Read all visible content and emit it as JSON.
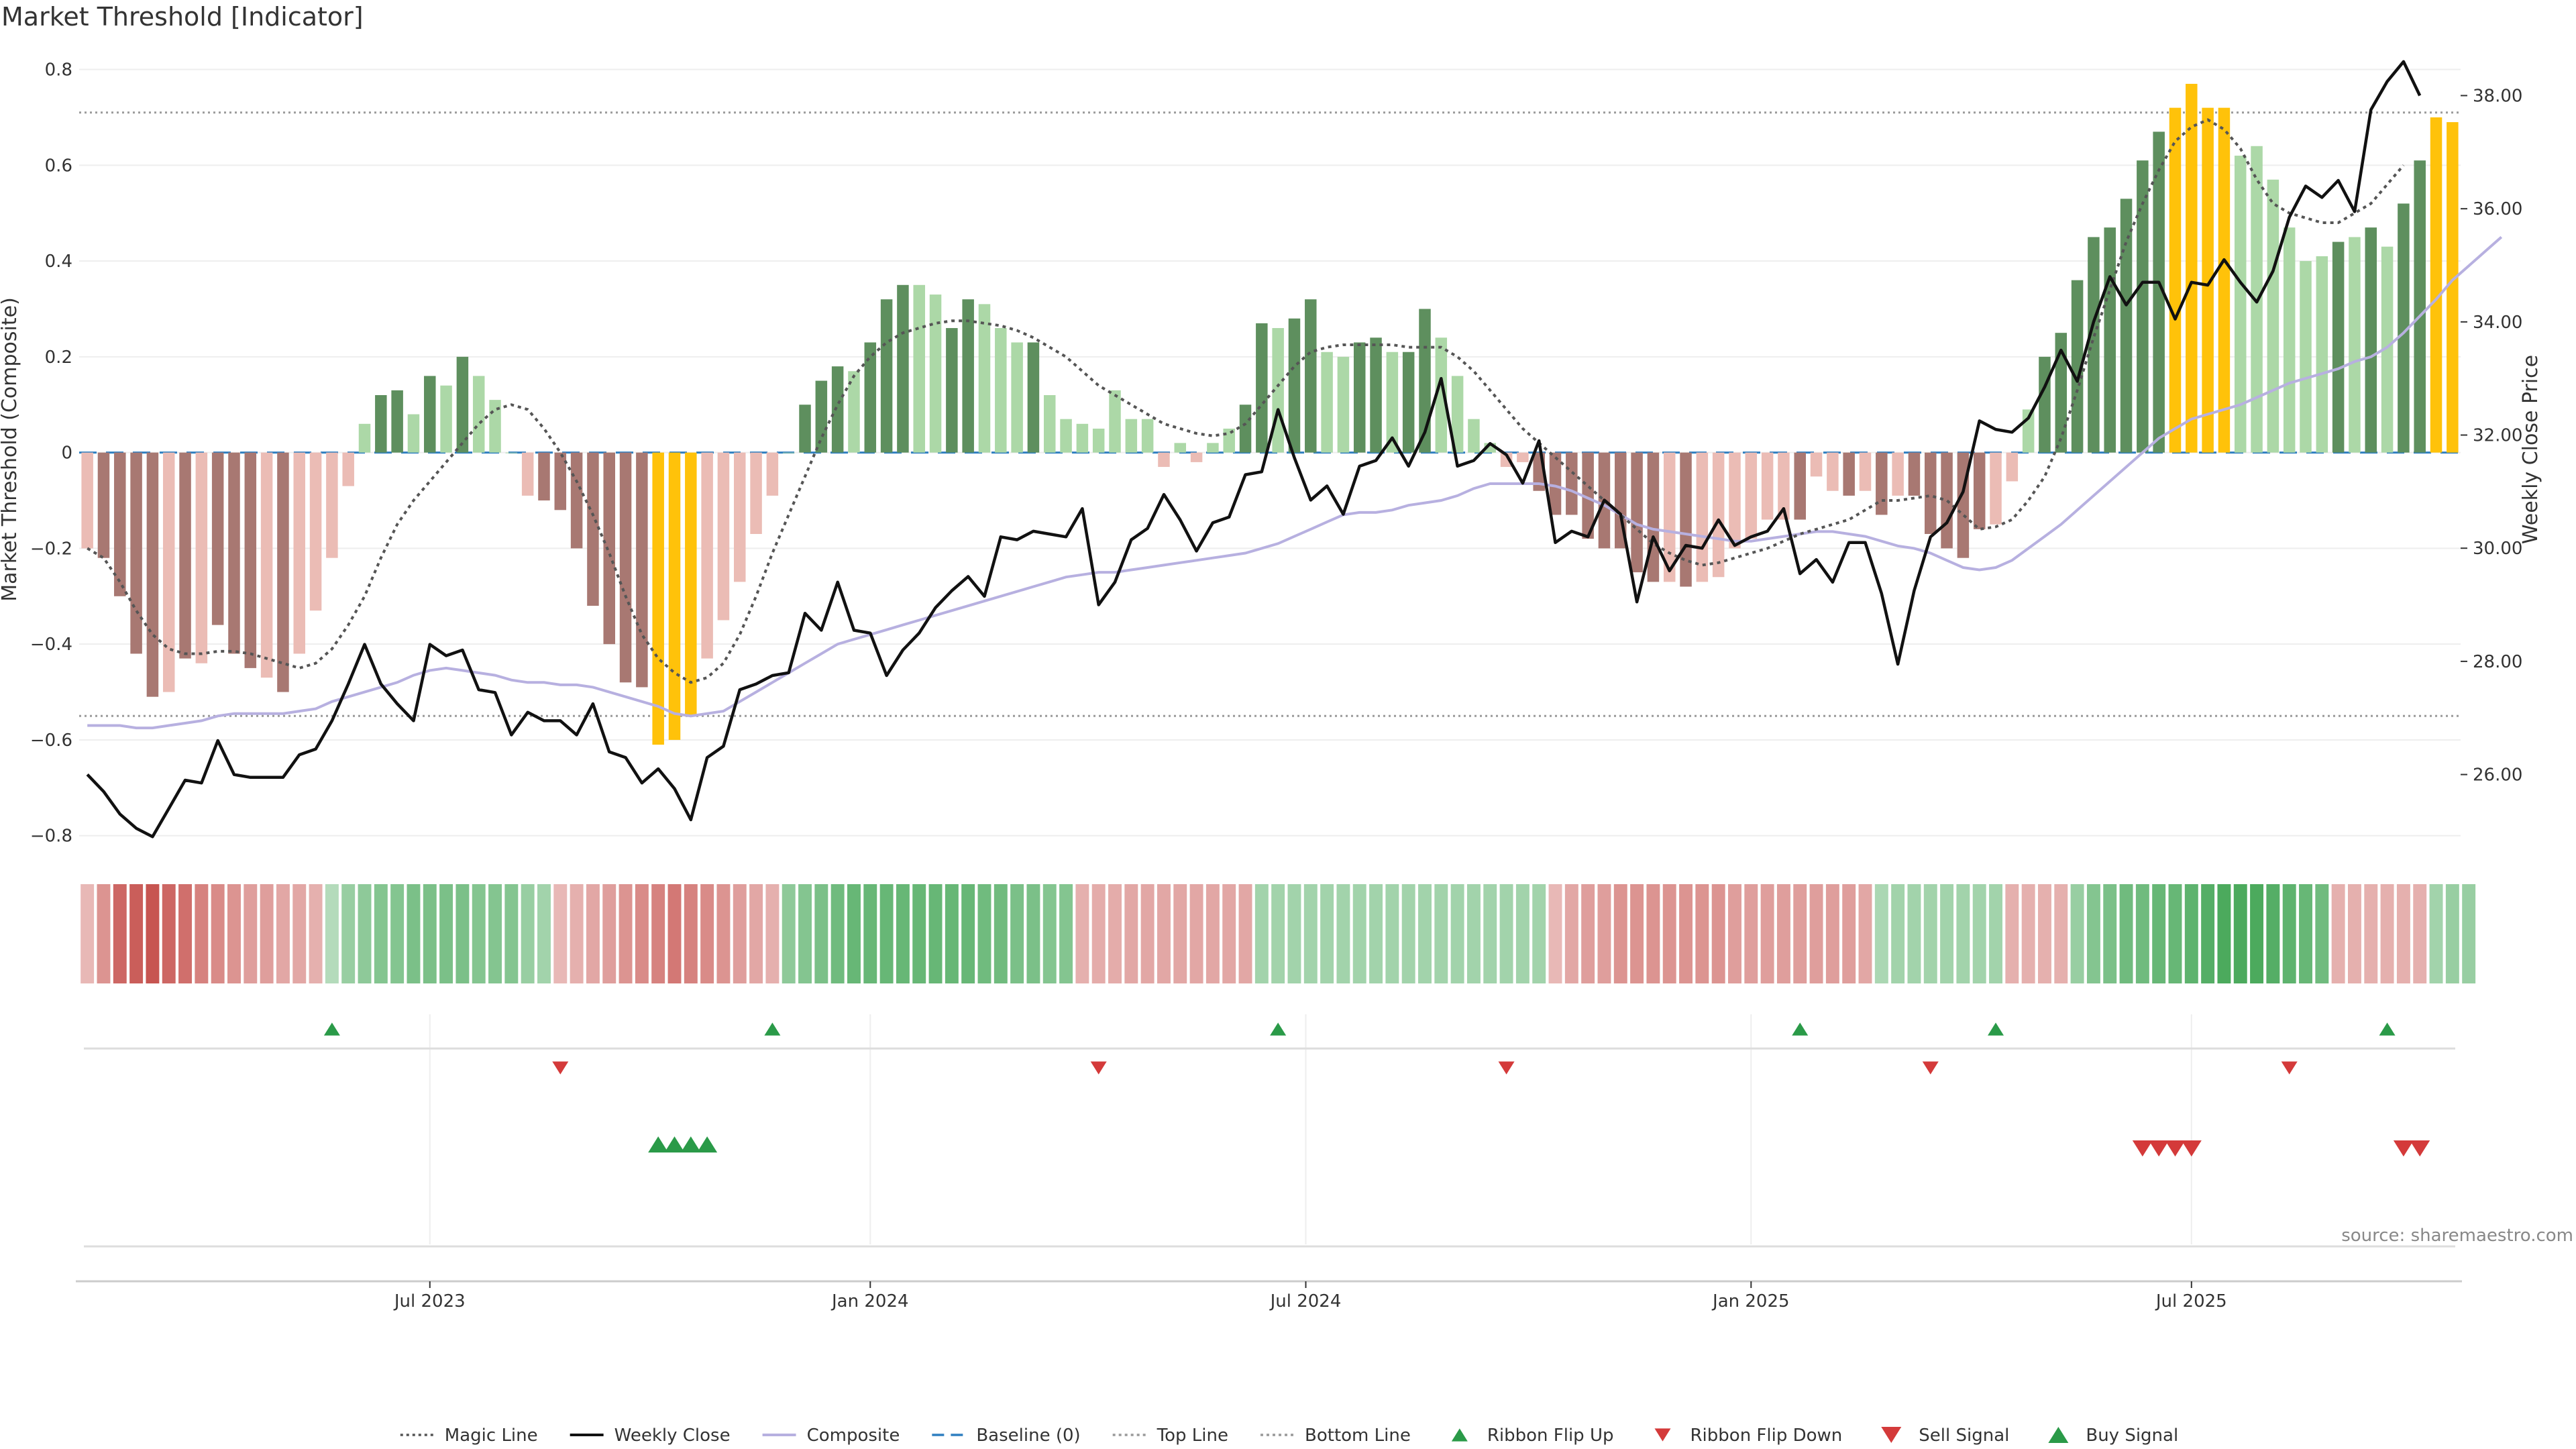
{
  "title": "Market Threshold [Indicator]",
  "source": "source: sharemaestro.com",
  "chart_data": {
    "type": "bar",
    "title": "Market Threshold [Indicator]",
    "xlabel": "",
    "ylabel": "Market Threshold (Composite)",
    "y2label": "Weekly Close Price",
    "ylim": [
      -0.82,
      0.84
    ],
    "y2lim": [
      24.75,
      38.8
    ],
    "yticks": [
      "0.8",
      "0.6",
      "0.4",
      "0.2",
      "0",
      "−0.2",
      "−0.4",
      "−0.6",
      "−0.8"
    ],
    "y2ticks": [
      "38.00",
      "36.00",
      "34.00",
      "32.00",
      "30.00",
      "28.00",
      "26.00"
    ],
    "xticks": [
      "Jul 2023",
      "Jan 2024",
      "Jul 2024",
      "Jan 2025",
      "Jul 2025"
    ],
    "top_line": 0.71,
    "bottom_line": -0.55,
    "baseline": 0,
    "grid": true,
    "legend_position": "bottom-center",
    "colors": {
      "dark_green": "#5e8f5e",
      "light_green": "#acd8a7",
      "dark_red": "#a87872",
      "light_red": "#ebbcb5",
      "extreme": "#ffc20a",
      "close": "#111111",
      "composite": "#b7b0e0",
      "magic": "#555555",
      "baseline": "#2f7fc0",
      "signal_green": "#2a9a48",
      "signal_red": "#d43a3a"
    },
    "bars": [
      -0.2,
      -0.22,
      -0.3,
      -0.42,
      -0.51,
      -0.5,
      -0.43,
      -0.44,
      -0.36,
      -0.42,
      -0.45,
      -0.47,
      -0.5,
      -0.42,
      -0.33,
      -0.22,
      -0.07,
      0.06,
      0.12,
      0.13,
      0.08,
      0.16,
      0.14,
      0.2,
      0.16,
      0.11,
      0,
      -0.09,
      -0.1,
      -0.12,
      -0.2,
      -0.32,
      -0.4,
      -0.48,
      -0.49,
      -0.61,
      -0.6,
      -0.55,
      -0.43,
      -0.35,
      -0.27,
      -0.17,
      -0.09,
      0,
      0.1,
      0.15,
      0.18,
      0.17,
      0.23,
      0.32,
      0.35,
      0.35,
      0.33,
      0.26,
      0.32,
      0.31,
      0.26,
      0.23,
      0.23,
      0.12,
      0.07,
      0.06,
      0.05,
      0.13,
      0.07,
      0.07,
      -0.03,
      0.02,
      -0.02,
      0.02,
      0.05,
      0.1,
      0.27,
      0.26,
      0.28,
      0.32,
      0.21,
      0.2,
      0.23,
      0.24,
      0.21,
      0.21,
      0.3,
      0.24,
      0.16,
      0.07,
      0.02,
      -0.03,
      -0.02,
      -0.08,
      -0.13,
      -0.13,
      -0.18,
      -0.2,
      -0.2,
      -0.25,
      -0.27,
      -0.27,
      -0.28,
      -0.27,
      -0.26,
      -0.2,
      -0.18,
      -0.14,
      -0.14,
      -0.14,
      -0.05,
      -0.08,
      -0.09,
      -0.08,
      -0.13,
      -0.09,
      -0.09,
      -0.17,
      -0.2,
      -0.22,
      -0.16,
      -0.15,
      -0.06,
      0.09,
      0.2,
      0.25,
      0.36,
      0.45,
      0.47,
      0.53,
      0.61,
      0.67,
      0.72,
      0.77,
      0.72,
      0.72,
      0.62,
      0.64,
      0.57,
      0.47,
      0.4,
      0.41,
      0.44,
      0.45,
      0.47,
      0.43,
      0.52,
      0.61,
      0.7,
      0.69
    ],
    "bar_colors": [
      "light_red",
      "dark_red",
      "dark_red",
      "dark_red",
      "dark_red",
      "light_red",
      "dark_red",
      "light_red",
      "dark_red",
      "dark_red",
      "dark_red",
      "light_red",
      "dark_red",
      "light_red",
      "light_red",
      "light_red",
      "light_red",
      "light_green",
      "dark_green",
      "dark_green",
      "light_green",
      "dark_green",
      "light_green",
      "dark_green",
      "light_green",
      "light_green",
      "light_green",
      "light_red",
      "dark_red",
      "dark_red",
      "dark_red",
      "dark_red",
      "dark_red",
      "dark_red",
      "dark_red",
      "extreme",
      "extreme",
      "extreme",
      "light_red",
      "light_red",
      "light_red",
      "light_red",
      "light_red",
      "light_green",
      "dark_green",
      "dark_green",
      "dark_green",
      "light_green",
      "dark_green",
      "dark_green",
      "dark_green",
      "light_green",
      "light_green",
      "dark_green",
      "dark_green",
      "light_green",
      "light_green",
      "light_green",
      "dark_green",
      "light_green",
      "light_green",
      "light_green",
      "light_green",
      "light_green",
      "light_green",
      "light_green",
      "light_red",
      "light_green",
      "light_red",
      "light_green",
      "light_green",
      "dark_green",
      "dark_green",
      "light_green",
      "dark_green",
      "dark_green",
      "light_green",
      "light_green",
      "dark_green",
      "dark_green",
      "light_green",
      "dark_green",
      "dark_green",
      "light_green",
      "light_green",
      "light_green",
      "light_green",
      "light_red",
      "light_red",
      "dark_red",
      "dark_red",
      "dark_red",
      "dark_red",
      "dark_red",
      "dark_red",
      "dark_red",
      "dark_red",
      "light_red",
      "dark_red",
      "light_red",
      "light_red",
      "light_red",
      "light_red",
      "light_red",
      "light_red",
      "dark_red",
      "light_red",
      "light_red",
      "dark_red",
      "light_red",
      "dark_red",
      "light_red",
      "dark_red",
      "dark_red",
      "dark_red",
      "dark_red",
      "dark_red",
      "light_red",
      "light_red",
      "light_green",
      "dark_green",
      "dark_green",
      "dark_green",
      "dark_green",
      "dark_green",
      "dark_green",
      "dark_green",
      "dark_green",
      "extreme",
      "extreme",
      "extreme",
      "extreme",
      "light_green",
      "light_green",
      "light_green",
      "light_green",
      "light_green",
      "light_green",
      "dark_green",
      "light_green",
      "dark_green",
      "light_green",
      "dark_green",
      "dark_green",
      "extreme",
      "extreme"
    ],
    "weekly_close": [
      26.0,
      25.7,
      25.3,
      25.05,
      24.9,
      25.4,
      25.9,
      25.85,
      26.6,
      26.0,
      25.95,
      25.95,
      25.95,
      26.35,
      26.45,
      26.95,
      27.6,
      28.3,
      27.6,
      27.25,
      26.95,
      28.3,
      28.1,
      28.2,
      27.5,
      27.45,
      26.7,
      27.1,
      26.95,
      26.95,
      26.7,
      27.25,
      26.4,
      26.3,
      25.85,
      26.1,
      25.75,
      25.2,
      26.3,
      26.5,
      27.5,
      27.6,
      27.75,
      27.8,
      28.85,
      28.55,
      29.4,
      28.55,
      28.5,
      27.75,
      28.2,
      28.5,
      28.95,
      29.25,
      29.5,
      29.15,
      30.2,
      30.15,
      30.3,
      30.25,
      30.2,
      30.7,
      29.0,
      29.4,
      30.15,
      30.35,
      30.95,
      30.5,
      29.95,
      30.45,
      30.55,
      31.3,
      31.35,
      32.45,
      31.6,
      30.85,
      31.1,
      30.6,
      31.45,
      31.55,
      31.95,
      31.45,
      32.05,
      33.0,
      31.45,
      31.55,
      31.85,
      31.65,
      31.15,
      31.9,
      30.1,
      30.3,
      30.2,
      30.85,
      30.6,
      29.05,
      30.2,
      29.6,
      30.05,
      30.0,
      30.5,
      30.05,
      30.2,
      30.3,
      30.7,
      29.55,
      29.8,
      29.4,
      30.1,
      30.1,
      29.2,
      27.95,
      29.25,
      30.2,
      30.45,
      31.0,
      32.25,
      32.1,
      32.05,
      32.3,
      32.85,
      33.5,
      32.95,
      34.0,
      34.8,
      34.3,
      34.7,
      34.7,
      34.05,
      34.7,
      34.65,
      35.1,
      34.7,
      34.35,
      34.9,
      35.85,
      36.4,
      36.2,
      36.5,
      35.95,
      37.75,
      38.25,
      38.6,
      38.0
    ],
    "composite": [
      -0.57,
      -0.57,
      -0.57,
      -0.575,
      -0.575,
      -0.57,
      -0.565,
      -0.56,
      -0.55,
      -0.545,
      -0.545,
      -0.545,
      -0.545,
      -0.54,
      -0.535,
      -0.52,
      -0.51,
      -0.5,
      -0.49,
      -0.48,
      -0.465,
      -0.455,
      -0.45,
      -0.455,
      -0.46,
      -0.465,
      -0.475,
      -0.48,
      -0.48,
      -0.485,
      -0.485,
      -0.49,
      -0.5,
      -0.51,
      -0.52,
      -0.53,
      -0.545,
      -0.55,
      -0.545,
      -0.54,
      -0.52,
      -0.5,
      -0.48,
      -0.46,
      -0.44,
      -0.42,
      -0.4,
      -0.39,
      -0.38,
      -0.37,
      -0.36,
      -0.35,
      -0.34,
      -0.33,
      -0.32,
      -0.31,
      -0.3,
      -0.29,
      -0.28,
      -0.27,
      -0.26,
      -0.255,
      -0.25,
      -0.25,
      -0.245,
      -0.24,
      -0.235,
      -0.23,
      -0.225,
      -0.22,
      -0.215,
      -0.21,
      -0.2,
      -0.19,
      -0.175,
      -0.16,
      -0.145,
      -0.13,
      -0.125,
      -0.125,
      -0.12,
      -0.11,
      -0.105,
      -0.1,
      -0.09,
      -0.075,
      -0.065,
      -0.065,
      -0.065,
      -0.065,
      -0.07,
      -0.08,
      -0.095,
      -0.11,
      -0.13,
      -0.15,
      -0.16,
      -0.165,
      -0.17,
      -0.175,
      -0.18,
      -0.185,
      -0.185,
      -0.18,
      -0.175,
      -0.17,
      -0.165,
      -0.165,
      -0.17,
      -0.175,
      -0.185,
      -0.195,
      -0.2,
      -0.21,
      -0.225,
      -0.24,
      -0.245,
      -0.24,
      -0.225,
      -0.2,
      -0.175,
      -0.15,
      -0.12,
      -0.09,
      -0.06,
      -0.03,
      0.0,
      0.03,
      0.05,
      0.07,
      0.08,
      0.09,
      0.1,
      0.115,
      0.13,
      0.145,
      0.155,
      0.165,
      0.175,
      0.19,
      0.2,
      0.22,
      0.25,
      0.285,
      0.32,
      0.36,
      0.39,
      0.42,
      0.45
    ],
    "magic_line": [
      -0.2,
      -0.22,
      -0.27,
      -0.33,
      -0.38,
      -0.41,
      -0.42,
      -0.42,
      -0.415,
      -0.415,
      -0.42,
      -0.43,
      -0.44,
      -0.45,
      -0.44,
      -0.41,
      -0.36,
      -0.3,
      -0.22,
      -0.15,
      -0.1,
      -0.06,
      -0.02,
      0.02,
      0.06,
      0.09,
      0.1,
      0.09,
      0.05,
      0.0,
      -0.06,
      -0.13,
      -0.21,
      -0.3,
      -0.38,
      -0.43,
      -0.46,
      -0.48,
      -0.47,
      -0.44,
      -0.38,
      -0.3,
      -0.21,
      -0.13,
      -0.05,
      0.03,
      0.1,
      0.16,
      0.2,
      0.23,
      0.25,
      0.26,
      0.27,
      0.275,
      0.275,
      0.27,
      0.265,
      0.255,
      0.24,
      0.22,
      0.2,
      0.17,
      0.14,
      0.12,
      0.1,
      0.08,
      0.06,
      0.05,
      0.04,
      0.035,
      0.04,
      0.06,
      0.1,
      0.14,
      0.18,
      0.21,
      0.22,
      0.225,
      0.225,
      0.225,
      0.225,
      0.22,
      0.22,
      0.22,
      0.2,
      0.17,
      0.13,
      0.09,
      0.05,
      0.02,
      -0.01,
      -0.04,
      -0.07,
      -0.1,
      -0.13,
      -0.16,
      -0.19,
      -0.21,
      -0.225,
      -0.235,
      -0.23,
      -0.22,
      -0.21,
      -0.2,
      -0.185,
      -0.17,
      -0.16,
      -0.15,
      -0.14,
      -0.12,
      -0.1,
      -0.1,
      -0.095,
      -0.09,
      -0.1,
      -0.13,
      -0.16,
      -0.155,
      -0.14,
      -0.1,
      -0.05,
      0.03,
      0.13,
      0.24,
      0.34,
      0.44,
      0.52,
      0.59,
      0.65,
      0.68,
      0.695,
      0.675,
      0.635,
      0.57,
      0.52,
      0.5,
      0.49,
      0.48,
      0.48,
      0.5,
      0.52,
      0.56,
      0.6
    ],
    "ribbon": [
      -0.15,
      -0.35,
      -0.6,
      -0.65,
      -0.7,
      -0.6,
      -0.55,
      -0.45,
      -0.4,
      -0.35,
      -0.3,
      -0.3,
      -0.25,
      -0.25,
      -0.2,
      0.15,
      0.3,
      0.35,
      0.4,
      0.4,
      0.45,
      0.45,
      0.45,
      0.45,
      0.4,
      0.4,
      0.4,
      0.3,
      0.25,
      -0.15,
      -0.2,
      -0.25,
      -0.3,
      -0.35,
      -0.4,
      -0.45,
      -0.5,
      -0.45,
      -0.4,
      -0.35,
      -0.3,
      -0.25,
      -0.2,
      0.35,
      0.4,
      0.45,
      0.5,
      0.55,
      0.55,
      0.55,
      0.55,
      0.55,
      0.55,
      0.55,
      0.55,
      0.5,
      0.5,
      0.45,
      0.45,
      0.4,
      0.4,
      -0.2,
      -0.22,
      -0.22,
      -0.25,
      -0.25,
      -0.25,
      -0.25,
      -0.25,
      -0.25,
      -0.25,
      -0.25,
      0.25,
      0.25,
      0.25,
      0.25,
      0.25,
      0.25,
      0.25,
      0.25,
      0.25,
      0.25,
      0.25,
      0.25,
      0.25,
      0.25,
      0.25,
      0.25,
      0.25,
      0.25,
      -0.15,
      -0.25,
      -0.3,
      -0.3,
      -0.35,
      -0.35,
      -0.35,
      -0.35,
      -0.35,
      -0.35,
      -0.35,
      -0.3,
      -0.3,
      -0.3,
      -0.3,
      -0.3,
      -0.3,
      -0.3,
      -0.3,
      -0.25,
      0.2,
      0.25,
      0.25,
      0.25,
      0.25,
      0.25,
      0.25,
      0.25,
      -0.2,
      -0.2,
      -0.2,
      -0.2,
      0.3,
      0.4,
      0.45,
      0.5,
      0.5,
      0.55,
      0.55,
      0.6,
      0.65,
      0.7,
      0.7,
      0.7,
      0.65,
      0.6,
      0.55,
      0.5,
      -0.2,
      -0.2,
      -0.2,
      -0.2,
      -0.2,
      -0.2,
      0.25,
      0.3,
      0.3
    ],
    "ribbon_flip_up": [
      15,
      42,
      73,
      105,
      117,
      141
    ],
    "ribbon_flip_down": [
      29,
      62,
      87,
      113,
      135
    ],
    "buy_signal": [
      35,
      36,
      37,
      38
    ],
    "sell_signal": [
      126,
      127,
      128,
      129,
      142,
      143
    ],
    "legend": [
      {
        "label": "Magic Line",
        "kind": "dotted-line",
        "color": "#555555"
      },
      {
        "label": "Weekly Close",
        "kind": "line",
        "color": "#111111"
      },
      {
        "label": "Composite",
        "kind": "line",
        "color": "#b7b0e0"
      },
      {
        "label": "Baseline (0)",
        "kind": "dashed-line",
        "color": "#2f7fc0"
      },
      {
        "label": "Top Line",
        "kind": "dotted-line",
        "color": "#9a9a9a"
      },
      {
        "label": "Bottom Line",
        "kind": "dotted-line",
        "color": "#9a9a9a"
      },
      {
        "label": "Ribbon Flip Up",
        "kind": "triangle-up",
        "color": "#2a9a48"
      },
      {
        "label": "Ribbon Flip Down",
        "kind": "triangle-down",
        "color": "#d43a3a"
      },
      {
        "label": "Sell Signal",
        "kind": "triangle-down-large",
        "color": "#d43a3a"
      },
      {
        "label": "Buy Signal",
        "kind": "triangle-up-large",
        "color": "#2a9a48"
      }
    ]
  }
}
